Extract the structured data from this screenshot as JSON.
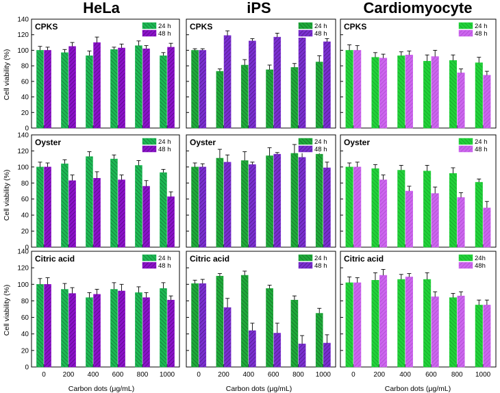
{
  "figure": {
    "columns": [
      "HeLa",
      "iPS",
      "Cardiomyocyte"
    ],
    "rows": [
      "CPKS",
      "Oyster",
      "Citric acid"
    ],
    "ylabel": "Cell viability (%)",
    "xlabel": "Carbon dots (μg/mL)",
    "colors": {
      "hela_24": "#1db954",
      "hela_48": "#8b12c9",
      "ips_24": "#1faa3a",
      "ips_48": "#7a2fd0",
      "cardio_24": "#22d23a",
      "cardio_48": "#cc66ee"
    }
  },
  "chart_data": [
    {
      "type": "bar",
      "panel": "HeLa-CPKS",
      "title": "CPKS",
      "categories": [
        "0",
        "200",
        "400",
        "600",
        "800",
        "1000"
      ],
      "series": [
        {
          "name": "24 h",
          "values": [
            100,
            97,
            93,
            101,
            106,
            93
          ],
          "errors": [
            5,
            4,
            6,
            3,
            6,
            4
          ]
        },
        {
          "name": "48 h",
          "values": [
            100,
            105,
            110,
            103,
            102,
            104
          ],
          "errors": [
            4,
            5,
            7,
            5,
            4,
            5
          ]
        }
      ],
      "ylim": [
        0,
        140
      ],
      "yticks": [
        0,
        20,
        40,
        60,
        80,
        100,
        120,
        140
      ],
      "ylabel": "Cell viability (%)",
      "xlabel": "",
      "legend": "top-right"
    },
    {
      "type": "bar",
      "panel": "iPS-CPKS",
      "title": "CPKS",
      "categories": [
        "0",
        "200",
        "400",
        "600",
        "800",
        "1000"
      ],
      "series": [
        {
          "name": "24 h",
          "values": [
            100,
            73,
            81,
            75,
            78,
            85
          ],
          "errors": [
            2,
            3,
            7,
            6,
            5,
            8
          ]
        },
        {
          "name": "48 h",
          "values": [
            100,
            119,
            112,
            117,
            116,
            111
          ],
          "errors": [
            2,
            6,
            3,
            5,
            5,
            4
          ]
        }
      ],
      "ylim": [
        0,
        140
      ],
      "yticks": [
        0,
        20,
        40,
        60,
        80,
        100,
        120,
        140
      ],
      "ylabel": "",
      "xlabel": "",
      "legend": "top-right"
    },
    {
      "type": "bar",
      "panel": "Cardiomyocyte-CPKS",
      "title": "CPKS",
      "categories": [
        "0",
        "200",
        "400",
        "600",
        "800",
        "1000"
      ],
      "series": [
        {
          "name": "24 h",
          "values": [
            100,
            91,
            93,
            86,
            87,
            84
          ],
          "errors": [
            7,
            6,
            5,
            8,
            7,
            7
          ]
        },
        {
          "name": "48 h",
          "values": [
            100,
            90,
            94,
            92,
            71,
            68
          ],
          "errors": [
            6,
            5,
            5,
            8,
            5,
            5
          ]
        }
      ],
      "ylim": [
        0,
        140
      ],
      "yticks": [
        0,
        20,
        40,
        60,
        80,
        100,
        120,
        140
      ],
      "ylabel": "",
      "xlabel": "",
      "legend": "top-right"
    },
    {
      "type": "bar",
      "panel": "HeLa-Oyster",
      "title": "Oyster",
      "categories": [
        "0",
        "200",
        "400",
        "600",
        "800",
        "1000"
      ],
      "series": [
        {
          "name": "24 h",
          "values": [
            100,
            104,
            113,
            110,
            102,
            93
          ],
          "errors": [
            6,
            5,
            6,
            5,
            6,
            4
          ]
        },
        {
          "name": "48 h",
          "values": [
            100,
            83,
            86,
            84,
            76,
            63
          ],
          "errors": [
            5,
            7,
            8,
            6,
            7,
            6
          ]
        }
      ],
      "ylim": [
        0,
        140
      ],
      "yticks": [
        0,
        20,
        40,
        60,
        80,
        100,
        120,
        140
      ],
      "ylabel": "Cell viability (%)",
      "xlabel": "",
      "legend": "top-right"
    },
    {
      "type": "bar",
      "panel": "iPS-Oyster",
      "title": "Oyster",
      "categories": [
        "0",
        "200",
        "400",
        "600",
        "800",
        "1000"
      ],
      "series": [
        {
          "name": "24 h",
          "values": [
            100,
            111,
            108,
            114,
            117,
            116
          ],
          "errors": [
            5,
            11,
            11,
            10,
            11,
            9
          ]
        },
        {
          "name": "48 h",
          "values": [
            100,
            106,
            103,
            116,
            112,
            99
          ],
          "errors": [
            4,
            9,
            3,
            2,
            11,
            7
          ]
        }
      ],
      "ylim": [
        0,
        140
      ],
      "yticks": [
        0,
        20,
        40,
        60,
        80,
        100,
        120,
        140
      ],
      "ylabel": "",
      "xlabel": "",
      "legend": "top-right"
    },
    {
      "type": "bar",
      "panel": "Cardiomyocyte-Oyster",
      "title": "Oyster",
      "categories": [
        "0",
        "200",
        "400",
        "600",
        "800",
        "1000"
      ],
      "series": [
        {
          "name": "24 h",
          "values": [
            100,
            98,
            96,
            95,
            92,
            81
          ],
          "errors": [
            5,
            5,
            6,
            7,
            7,
            4
          ]
        },
        {
          "name": "48 h",
          "values": [
            100,
            84,
            70,
            67,
            62,
            49
          ],
          "errors": [
            6,
            6,
            6,
            8,
            6,
            8
          ]
        }
      ],
      "ylim": [
        0,
        140
      ],
      "yticks": [
        0,
        20,
        40,
        60,
        80,
        100,
        120,
        140
      ],
      "ylabel": "",
      "xlabel": "",
      "legend": "top-right"
    },
    {
      "type": "bar",
      "panel": "HeLa-Citric acid",
      "title": "Citric acid",
      "categories": [
        "0",
        "200",
        "400",
        "600",
        "800",
        "1000"
      ],
      "series": [
        {
          "name": "24 h",
          "values": [
            100,
            94,
            84,
            94,
            90,
            95
          ],
          "errors": [
            7,
            7,
            6,
            8,
            7,
            7
          ]
        },
        {
          "name": "48 h",
          "values": [
            100,
            89,
            88,
            92,
            84,
            81
          ],
          "errors": [
            8,
            7,
            6,
            8,
            6,
            5
          ]
        }
      ],
      "ylim": [
        0,
        140
      ],
      "yticks": [
        0,
        20,
        40,
        60,
        80,
        100,
        120,
        140
      ],
      "ylabel": "Cell viability (%)",
      "xlabel": "Carbon dots (μg/mL)",
      "legend": "top-right"
    },
    {
      "type": "bar",
      "panel": "iPS-Citric acid",
      "title": "Citric acid",
      "categories": [
        "0",
        "200",
        "400",
        "600",
        "800",
        "1000"
      ],
      "series": [
        {
          "name": "24 h",
          "values": [
            101,
            110,
            111,
            95,
            81,
            65
          ],
          "errors": [
            4,
            3,
            5,
            4,
            5,
            6
          ]
        },
        {
          "name": "48 h",
          "values": [
            101,
            72,
            44,
            41,
            28,
            29
          ],
          "errors": [
            5,
            11,
            9,
            12,
            10,
            10
          ]
        }
      ],
      "ylim": [
        0,
        140
      ],
      "yticks": [
        0,
        20,
        40,
        60,
        80,
        100,
        120,
        140
      ],
      "ylabel": "",
      "xlabel": "Carbon dots (μg/mL)",
      "legend": "top-right"
    },
    {
      "type": "bar",
      "panel": "Cardiomyocyte-Citric acid",
      "title": "Citric acid",
      "categories": [
        "0",
        "200",
        "400",
        "600",
        "800",
        "1000"
      ],
      "series": [
        {
          "name": "24h",
          "values": [
            102,
            105,
            106,
            106,
            84,
            75
          ],
          "errors": [
            7,
            9,
            6,
            8,
            5,
            6
          ]
        },
        {
          "name": "48h",
          "values": [
            102,
            111,
            109,
            85,
            86,
            75
          ],
          "errors": [
            6,
            7,
            4,
            6,
            5,
            6
          ]
        }
      ],
      "ylim": [
        0,
        140
      ],
      "yticks": [
        0,
        20,
        40,
        60,
        80,
        100,
        120,
        140
      ],
      "ylabel": "",
      "xlabel": "Carbon dots (μg/mL)",
      "legend": "top-right"
    }
  ]
}
